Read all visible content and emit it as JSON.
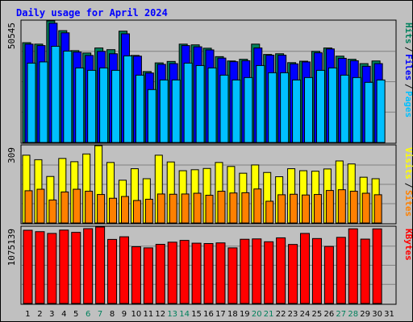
{
  "title": "Daily usage for April 2024",
  "colors": {
    "background": "#c0c0c0",
    "plot_bg": "#c0c0c0",
    "hits": "#00805c",
    "files": "#0000ff",
    "pages": "#00c0ff",
    "visits": "#ffff00",
    "sites": "#ff8000",
    "kbytes": "#ff0000",
    "title_color": "#0000ff",
    "weekend_day_color": "#00805c",
    "day_color": "#000080"
  },
  "chart_data": [
    {
      "type": "bar",
      "panel": "hits-files-pages",
      "categories": [
        "1",
        "2",
        "3",
        "4",
        "5",
        "6",
        "7",
        "8",
        "9",
        "10",
        "11",
        "12",
        "13",
        "14",
        "15",
        "16",
        "17",
        "18",
        "19",
        "20",
        "21",
        "22",
        "23",
        "24",
        "25",
        "26",
        "27",
        "28",
        "29",
        "30",
        "31"
      ],
      "max_label": "50545",
      "ylim": [
        0,
        50545
      ],
      "series": [
        {
          "name": "Hits",
          "values": [
            41500,
            40900,
            50545,
            46500,
            38200,
            37200,
            39300,
            38600,
            46300,
            36200,
            29500,
            33100,
            33700,
            40900,
            40600,
            39200,
            35700,
            33900,
            34600,
            40900,
            36600,
            36900,
            33200,
            33800,
            37900,
            39300,
            35900,
            34600,
            32800,
            33900,
            0
          ]
        },
        {
          "name": "Files",
          "values": [
            40900,
            40300,
            49600,
            45600,
            37600,
            36200,
            37900,
            36900,
            45200,
            35900,
            28900,
            32500,
            32800,
            40300,
            39800,
            38500,
            35100,
            33600,
            34000,
            39300,
            36300,
            36300,
            32700,
            33500,
            37300,
            38900,
            35000,
            34000,
            31700,
            32800,
            0
          ]
        },
        {
          "name": "Pages",
          "values": [
            33000,
            33500,
            40000,
            38000,
            31000,
            30000,
            31000,
            30000,
            36000,
            28000,
            22000,
            26000,
            26000,
            33000,
            32000,
            31000,
            28000,
            26000,
            27000,
            32000,
            29000,
            29000,
            26000,
            27000,
            30000,
            31000,
            28000,
            27000,
            25000,
            26000,
            0
          ]
        }
      ]
    },
    {
      "type": "bar",
      "panel": "visits-sites",
      "categories": [
        "1",
        "2",
        "3",
        "4",
        "5",
        "6",
        "7",
        "8",
        "9",
        "10",
        "11",
        "12",
        "13",
        "14",
        "15",
        "16",
        "17",
        "18",
        "19",
        "20",
        "21",
        "22",
        "23",
        "24",
        "25",
        "26",
        "27",
        "28",
        "29",
        "30",
        "31"
      ],
      "max_label": "309",
      "ylim": [
        0,
        309
      ],
      "series": [
        {
          "name": "Visits",
          "values": [
            271,
            253,
            186,
            258,
            245,
            276,
            309,
            242,
            171,
            217,
            177,
            271,
            244,
            209,
            213,
            218,
            242,
            226,
            199,
            232,
            202,
            185,
            217,
            209,
            207,
            216,
            248,
            236,
            183,
            177,
            0
          ]
        },
        {
          "name": "Sites",
          "values": [
            129,
            135,
            92,
            124,
            135,
            127,
            114,
            99,
            106,
            90,
            95,
            116,
            115,
            116,
            119,
            111,
            127,
            120,
            121,
            136,
            87,
            113,
            115,
            112,
            114,
            130,
            133,
            127,
            119,
            113,
            0
          ]
        }
      ]
    },
    {
      "type": "bar",
      "panel": "kbytes",
      "categories": [
        "1",
        "2",
        "3",
        "4",
        "5",
        "6",
        "7",
        "8",
        "9",
        "10",
        "11",
        "12",
        "13",
        "14",
        "15",
        "16",
        "17",
        "18",
        "19",
        "20",
        "21",
        "22",
        "23",
        "24",
        "25",
        "26",
        "27",
        "28",
        "29",
        "30",
        "31"
      ],
      "max_label": "1075139",
      "ylim": [
        0,
        1075139
      ],
      "series": [
        {
          "name": "KBytes",
          "values": [
            1030000,
            1010000,
            985000,
            1032000,
            1000000,
            1052000,
            1075139,
            901000,
            938000,
            798000,
            782000,
            832000,
            862000,
            887000,
            848000,
            843000,
            852000,
            782000,
            903000,
            908000,
            868000,
            923000,
            830000,
            985000,
            913000,
            802000,
            930000,
            1050000,
            905000,
            1049000,
            0
          ]
        }
      ]
    }
  ]
}
